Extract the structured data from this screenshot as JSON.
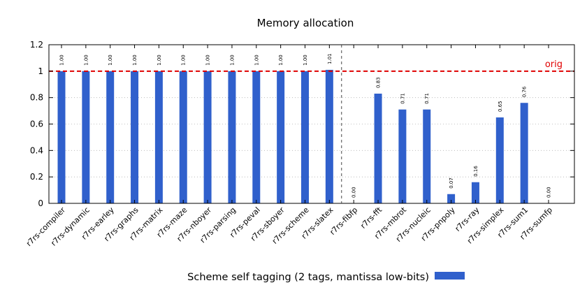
{
  "chart_data": {
    "type": "bar",
    "title": "Memory allocation",
    "xlabel": "",
    "ylabel": "",
    "ylim": [
      0,
      1.2
    ],
    "yticks": [
      "0",
      "0.2",
      "0.4",
      "0.6",
      "0.8",
      "1",
      "1.2"
    ],
    "grid": true,
    "legend_position": "bottom-center",
    "reference_line": {
      "value": 1.0,
      "label": "orig",
      "color": "#e00000"
    },
    "separator_after_index": 11,
    "categories": [
      "r7rs-compiler",
      "r7rs-dynamic",
      "r7rs-earley",
      "r7rs-graphs",
      "r7rs-matrix",
      "r7rs-maze",
      "r7rs-nboyer",
      "r7rs-parsing",
      "r7rs-peval",
      "r7rs-sboyer",
      "r7rs-scheme",
      "r7rs-slatex",
      "r7rs-fibfp",
      "r7rs-fft",
      "r7rs-mbrot",
      "r7rs-nucleic",
      "r7rs-pnpoly",
      "r7rs-ray",
      "r7rs-simplex",
      "r7rs-sum1",
      "r7rs-sumfp"
    ],
    "series": [
      {
        "name": "Scheme self tagging (2 tags, mantissa low-bits)",
        "color": "#3060cc",
        "values": [
          1.0,
          1.0,
          1.0,
          1.0,
          1.0,
          1.0,
          1.0,
          1.0,
          1.0,
          1.0,
          1.0,
          1.01,
          0.0,
          0.83,
          0.71,
          0.71,
          0.07,
          0.16,
          0.65,
          0.76,
          0.0
        ],
        "labels": [
          "1.00",
          "1.00",
          "1.00",
          "1.00",
          "1.00",
          "1.00",
          "1.00",
          "1.00",
          "1.00",
          "1.00",
          "1.00",
          "1.01",
          "0.00",
          "0.83",
          "0.71",
          "0.71",
          "0.07",
          "0.16",
          "0.65",
          "0.76",
          "0.00"
        ]
      }
    ]
  }
}
